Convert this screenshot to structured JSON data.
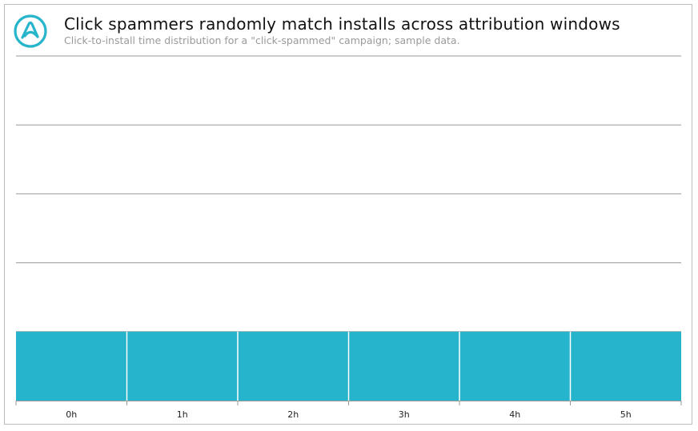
{
  "header": {
    "title": "Click spammers randomly match installs across attribution windows",
    "subtitle": "Click-to-install time distribution for a \"click-spammed\" campaign; sample data."
  },
  "logo": {
    "icon": "brand-logo-icon",
    "color": "#26b5cb"
  },
  "chart_data": {
    "type": "bar",
    "categories": [
      "0h",
      "1h",
      "2h",
      "3h",
      "4h",
      "5h"
    ],
    "values": [
      1,
      1,
      1,
      1,
      1,
      1
    ],
    "ylim": [
      0,
      5
    ],
    "grid": true,
    "bar_color": "#25b4cb",
    "grid_color": "#999999"
  }
}
